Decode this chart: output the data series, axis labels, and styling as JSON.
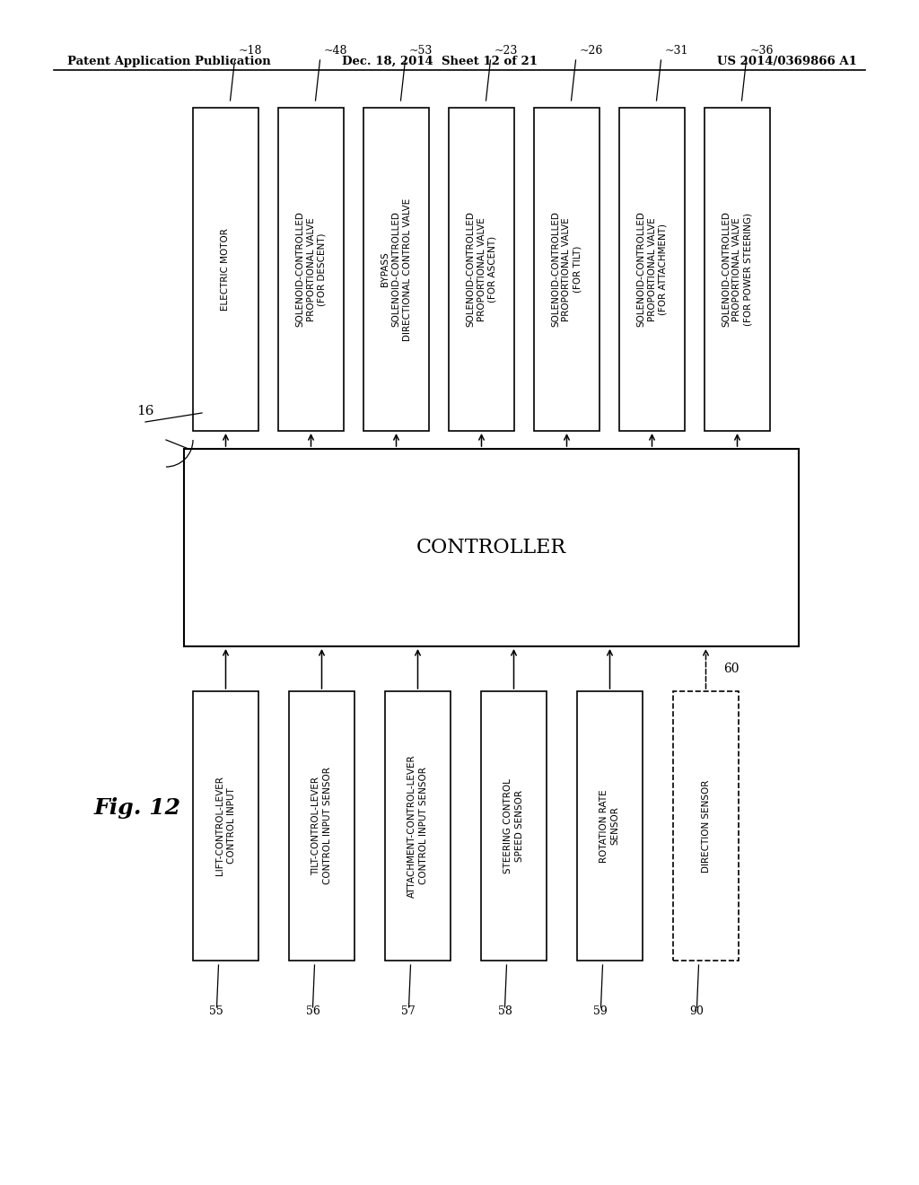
{
  "header_left": "Patent Application Publication",
  "header_mid": "Dec. 18, 2014  Sheet 12 of 21",
  "header_right": "US 2014/0369866 A1",
  "fig_label": "Fig. 12",
  "controller_label": "CONTROLLER",
  "controller_ref": "16",
  "dashed_line_ref": "60",
  "output_boxes": [
    {
      "ref": "18",
      "lines": [
        "ELECTRIC MOTOR"
      ]
    },
    {
      "ref": "48",
      "lines": [
        "SOLENOID-CONTROLLED",
        "PROPORTIONAL VALVE",
        "(FOR DESCENT)"
      ]
    },
    {
      "ref": "53",
      "lines": [
        "BYPASS",
        "SOLENOID-CONTROLLED",
        "DIRECTIONAL CONTROL VALVE"
      ]
    },
    {
      "ref": "23",
      "lines": [
        "SOLENOID-CONTROLLED",
        "PROPORTIONAL VALVE",
        "(FOR ASCENT)"
      ]
    },
    {
      "ref": "26",
      "lines": [
        "SOLENOID-CONTROLLED",
        "PROPORTIONAL VALVE",
        "(FOR TILT)"
      ]
    },
    {
      "ref": "31",
      "lines": [
        "SOLENOID-CONTROLLED",
        "PROPORTIONAL VALVE",
        "(FOR ATTACHMENT)"
      ]
    },
    {
      "ref": "36",
      "lines": [
        "SOLENOID-CONTROLLED",
        "PROPORTIONAL VALVE",
        "(FOR POWER STEERING)"
      ]
    }
  ],
  "input_boxes": [
    {
      "ref": "55",
      "lines": [
        "LIFT-CONTROL-LEVER",
        "CONTROL INPUT"
      ]
    },
    {
      "ref": "56",
      "lines": [
        "TILT-CONTROL-LEVER",
        "CONTROL INPUT SENSOR"
      ]
    },
    {
      "ref": "57",
      "lines": [
        "ATTACHMENT-CONTROL-LEVER",
        "CONTROL INPUT SENSOR"
      ]
    },
    {
      "ref": "58",
      "lines": [
        "STEERING CONTROL",
        "SPEED SENSOR"
      ]
    },
    {
      "ref": "59",
      "lines": [
        "ROTATION RATE",
        "SENSOR"
      ]
    },
    {
      "ref": "90",
      "lines": [
        "DIRECTION SENSOR"
      ]
    }
  ],
  "bg_color": "#ffffff",
  "box_color": "#000000",
  "text_color": "#000000"
}
